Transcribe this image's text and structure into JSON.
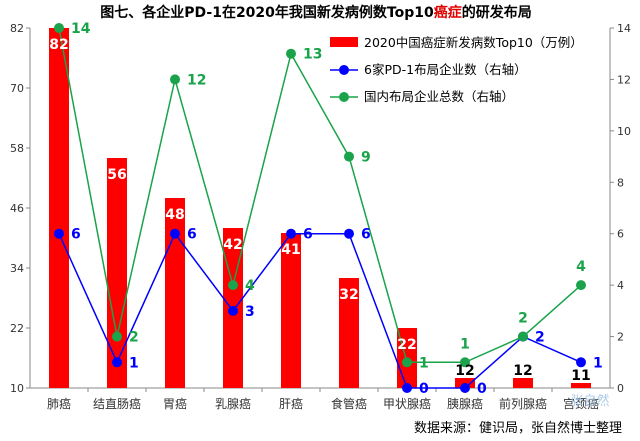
{
  "chart_data": {
    "type": "bar",
    "title": {
      "prefix": "图七、各企业PD-1在2020年我国新发病例数Top10",
      "highlight": "癌症",
      "suffix": "的研发布局",
      "highlight_color": "#e00000"
    },
    "categories": [
      "肺癌",
      "结直肠癌",
      "胃癌",
      "乳腺癌",
      "肝癌",
      "食管癌",
      "甲状腺癌",
      "胰腺癌",
      "前列腺癌",
      "宫颈癌"
    ],
    "left_axis": {
      "min": 10,
      "max": 82,
      "ticks": [
        10,
        22,
        34,
        46,
        58,
        70,
        82
      ]
    },
    "right_axis": {
      "min": 0,
      "max": 14,
      "ticks": [
        0,
        2,
        4,
        6,
        8,
        10,
        12,
        14
      ]
    },
    "series": [
      {
        "name": "2020中国癌症新发病数Top10（万例）",
        "kind": "bar",
        "axis": "left",
        "color": "#ff0000",
        "values": [
          82,
          56,
          48,
          42,
          41,
          32,
          22,
          12,
          12,
          11
        ],
        "labels": [
          "82",
          "56",
          "48",
          "42",
          "41",
          "32",
          "22",
          "12",
          "12",
          "11"
        ]
      },
      {
        "name": "6家PD-1布局企业数（右轴）",
        "kind": "line",
        "axis": "right",
        "color": "#0000ff",
        "values": [
          6,
          1,
          6,
          3,
          6,
          6,
          0,
          0,
          2,
          1
        ],
        "labels": [
          "6",
          "1",
          "6",
          "3",
          "6",
          "6",
          "0",
          "0",
          "2",
          "1"
        ]
      },
      {
        "name": "国内布局企业总数（右轴）",
        "kind": "line",
        "axis": "right",
        "color": "#1aa34a",
        "values": [
          14,
          2,
          12,
          4,
          13,
          9,
          1,
          1,
          2,
          4
        ],
        "labels": [
          "14",
          "2",
          "12",
          "4",
          "13",
          "9",
          "1",
          "1",
          "2",
          "4"
        ]
      }
    ],
    "legend_position": "top-right",
    "grid": false
  },
  "source": "数据来源：健识局，张自然博士整理",
  "watermark": "张自然"
}
